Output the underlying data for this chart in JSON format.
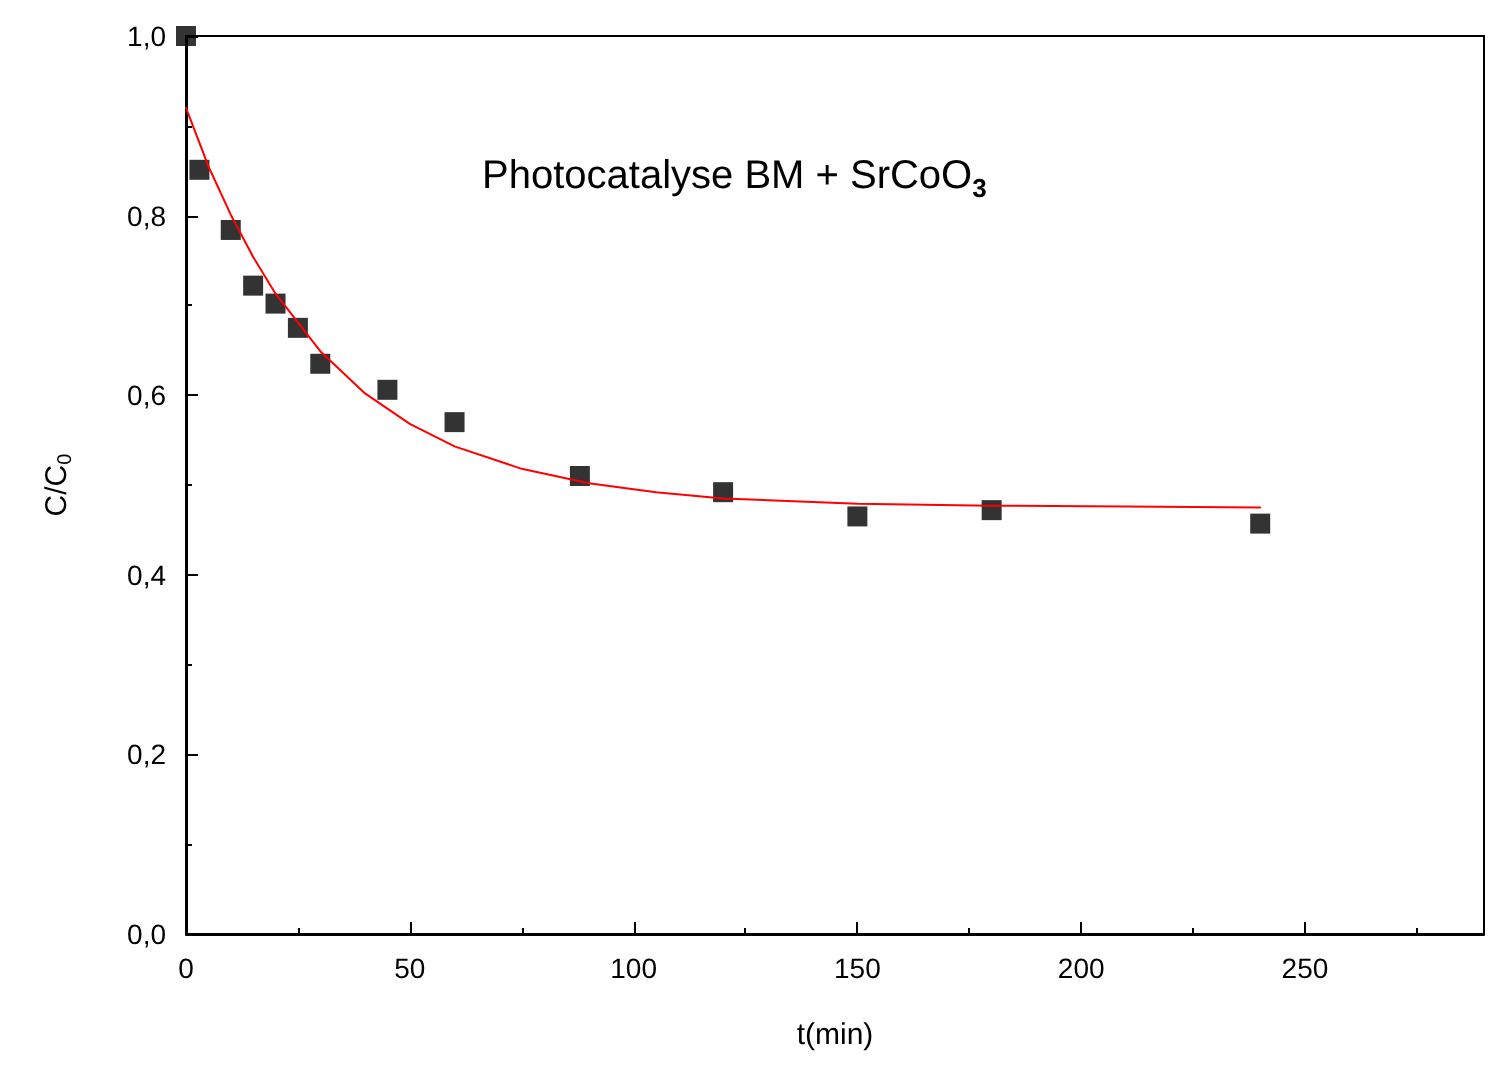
{
  "chart_data": {
    "type": "scatter",
    "title": "Photocatalyse BM + SrCoO$_{3}$",
    "xlabel": "t(min)",
    "ylabel": "C/C$_{0}$",
    "xlim": [
      0,
      290
    ],
    "xticks": [
      0,
      50,
      100,
      150,
      200,
      250
    ],
    "ylim": [
      0,
      1
    ],
    "yticks": [
      {
        "value": 0,
        "label": "0,0"
      },
      {
        "value": 0.2,
        "label": "0,2"
      },
      {
        "value": 0.4,
        "label": "0,4"
      },
      {
        "value": 0.6,
        "label": "0,6"
      },
      {
        "value": 0.8,
        "label": "0,8"
      },
      {
        "value": 1,
        "label": "1,0"
      }
    ],
    "grid": false,
    "marker": "square",
    "series": [
      {
        "color": "#000000",
        "x": [
          0,
          3,
          10,
          15,
          20,
          25,
          30,
          45,
          60,
          88,
          120,
          150,
          180,
          240
        ],
        "values": [
          1.0,
          0.851,
          0.784,
          0.722,
          0.702,
          0.675,
          0.635,
          0.606,
          0.57,
          0.51,
          0.492,
          0.465,
          0.472,
          0.457
        ]
      },
      {
        "type": "line",
        "color": "#ff0000",
        "marker": "none",
        "line_style": "solid",
        "x": [
          0,
          5,
          10,
          15,
          20,
          30,
          40,
          50,
          60,
          75,
          90,
          105,
          120,
          150,
          180,
          210,
          240
        ],
        "values": [
          0.92,
          0.855,
          0.801,
          0.754,
          0.713,
          0.649,
          0.602,
          0.568,
          0.543,
          0.518,
          0.502,
          0.492,
          0.485,
          0.479,
          0.477,
          0.476,
          0.475
        ]
      }
    ]
  }
}
